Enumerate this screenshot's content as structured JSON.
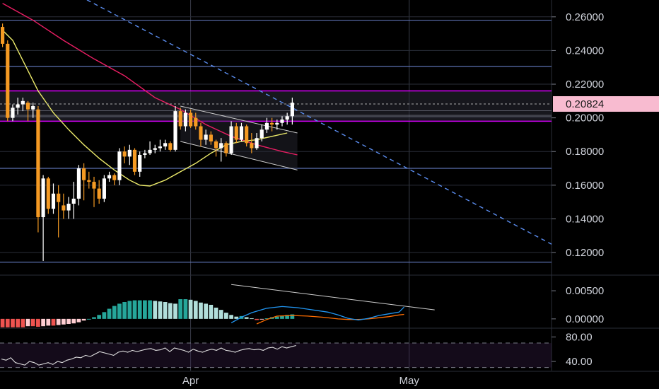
{
  "chart_data": [
    {
      "type": "candlestick",
      "panel": "price",
      "y_axis": {
        "range": [
          0.107,
          0.27
        ],
        "tick_labels": [
          "0.26000",
          "0.24000",
          "0.22000",
          "0.20000",
          "0.18000",
          "0.16000",
          "0.14000",
          "0.12000"
        ],
        "tick_values": [
          0.26,
          0.24,
          0.22,
          0.2,
          0.18,
          0.16,
          0.14,
          0.12
        ]
      },
      "x_axis": {
        "labels": [
          "Apr",
          "May"
        ],
        "label_bar_index": [
          37,
          80
        ],
        "visible_bars": [
          -0.5,
          108
        ]
      },
      "current_price": {
        "label": "0.20824",
        "value": 0.20824,
        "color": "#f8bbd0"
      },
      "colors": {
        "up": "#ffffff",
        "down": "#f59a23",
        "sma_short": "#ecea6a",
        "sma_long": "#e91e63",
        "zone": "#d500f9",
        "trend": "#5b8def",
        "grid": "#2a2e39",
        "level": "#5b6fb0"
      },
      "horizontal_levels": [
        0.258,
        0.2305,
        0.17,
        0.1143
      ],
      "resistance_zone": [
        0.198,
        0.216
      ],
      "zone_inner_lines": [
        0.2042,
        0.2015,
        0.2008
      ],
      "candles": [
        [
          0.254,
          0.256,
          0.242,
          0.244
        ],
        [
          0.244,
          0.246,
          0.198,
          0.2
        ],
        [
          0.2,
          0.208,
          0.198,
          0.206
        ],
        [
          0.206,
          0.212,
          0.202,
          0.208
        ],
        [
          0.208,
          0.212,
          0.204,
          0.21
        ],
        [
          0.209,
          0.21,
          0.198,
          0.205
        ],
        [
          0.205,
          0.209,
          0.2,
          0.207
        ],
        [
          0.205,
          0.207,
          0.132,
          0.141
        ],
        [
          0.141,
          0.166,
          0.115,
          0.164
        ],
        [
          0.164,
          0.165,
          0.143,
          0.146
        ],
        [
          0.146,
          0.161,
          0.143,
          0.155
        ],
        [
          0.155,
          0.16,
          0.129,
          0.15
        ],
        [
          0.148,
          0.155,
          0.14,
          0.145
        ],
        [
          0.145,
          0.153,
          0.14,
          0.149
        ],
        [
          0.149,
          0.162,
          0.14,
          0.152
        ],
        [
          0.152,
          0.172,
          0.148,
          0.17
        ],
        [
          0.17,
          0.173,
          0.151,
          0.163
        ],
        [
          0.163,
          0.168,
          0.158,
          0.162
        ],
        [
          0.162,
          0.165,
          0.147,
          0.158
        ],
        [
          0.158,
          0.163,
          0.149,
          0.152
        ],
        [
          0.152,
          0.166,
          0.15,
          0.164
        ],
        [
          0.164,
          0.168,
          0.162,
          0.166
        ],
        [
          0.166,
          0.167,
          0.16,
          0.163
        ],
        [
          0.163,
          0.182,
          0.16,
          0.18
        ],
        [
          0.18,
          0.183,
          0.173,
          0.177
        ],
        [
          0.177,
          0.184,
          0.172,
          0.181
        ],
        [
          0.181,
          0.182,
          0.166,
          0.168
        ],
        [
          0.168,
          0.18,
          0.165,
          0.178
        ],
        [
          0.178,
          0.181,
          0.176,
          0.179
        ],
        [
          0.179,
          0.186,
          0.178,
          0.181
        ],
        [
          0.181,
          0.184,
          0.179,
          0.182
        ],
        [
          0.182,
          0.187,
          0.18,
          0.183
        ],
        [
          0.183,
          0.187,
          0.181,
          0.185
        ],
        [
          0.185,
          0.186,
          0.18,
          0.181
        ],
        [
          0.181,
          0.207,
          0.18,
          0.204
        ],
        [
          0.204,
          0.206,
          0.193,
          0.195
        ],
        [
          0.195,
          0.205,
          0.192,
          0.203
        ],
        [
          0.203,
          0.205,
          0.194,
          0.195
        ],
        [
          0.2,
          0.203,
          0.193,
          0.195
        ],
        [
          0.195,
          0.197,
          0.183,
          0.187
        ],
        [
          0.187,
          0.193,
          0.184,
          0.19
        ],
        [
          0.19,
          0.192,
          0.184,
          0.186
        ],
        [
          0.186,
          0.187,
          0.177,
          0.182
        ],
        [
          0.182,
          0.188,
          0.174,
          0.185
        ],
        [
          0.185,
          0.186,
          0.177,
          0.179
        ],
        [
          0.179,
          0.198,
          0.178,
          0.195
        ],
        [
          0.195,
          0.197,
          0.185,
          0.187
        ],
        [
          0.187,
          0.197,
          0.186,
          0.195
        ],
        [
          0.195,
          0.196,
          0.183,
          0.185
        ],
        [
          0.185,
          0.191,
          0.179,
          0.182
        ],
        [
          0.182,
          0.191,
          0.181,
          0.188
        ],
        [
          0.188,
          0.196,
          0.186,
          0.193
        ],
        [
          0.193,
          0.2,
          0.191,
          0.197
        ],
        [
          0.197,
          0.2,
          0.192,
          0.196
        ],
        [
          0.196,
          0.199,
          0.193,
          0.197
        ],
        [
          0.197,
          0.201,
          0.195,
          0.199
        ],
        [
          0.199,
          0.203,
          0.196,
          0.201
        ],
        [
          0.201,
          0.212,
          0.196,
          0.209
        ]
      ],
      "sma_short": [
        [
          0,
          0.252
        ],
        [
          2,
          0.246
        ],
        [
          4,
          0.234
        ],
        [
          7,
          0.216
        ],
        [
          10,
          0.203
        ],
        [
          13,
          0.193
        ],
        [
          16,
          0.184
        ],
        [
          19,
          0.176
        ],
        [
          22,
          0.169
        ],
        [
          25,
          0.163
        ],
        [
          27,
          0.16
        ],
        [
          29,
          0.1595
        ],
        [
          32,
          0.163
        ],
        [
          35,
          0.168
        ],
        [
          38,
          0.173
        ],
        [
          41,
          0.179
        ],
        [
          44,
          0.184
        ],
        [
          47,
          0.186
        ],
        [
          50,
          0.187
        ],
        [
          53,
          0.189
        ],
        [
          56,
          0.191
        ]
      ],
      "sma_long": [
        [
          0,
          0.268
        ],
        [
          6,
          0.258
        ],
        [
          12,
          0.246
        ],
        [
          18,
          0.235
        ],
        [
          24,
          0.225
        ],
        [
          30,
          0.212
        ],
        [
          35,
          0.205
        ],
        [
          40,
          0.196
        ],
        [
          45,
          0.189
        ],
        [
          50,
          0.184
        ],
        [
          55,
          0.18
        ],
        [
          58,
          0.178
        ]
      ],
      "trendlines": [
        {
          "style": "dashed",
          "color": "#5b8def",
          "points": [
            [
              -1,
              0.298
            ],
            [
              108,
              0.125
            ]
          ]
        },
        {
          "style": "solid",
          "color": "#cfcfcf",
          "points": [
            [
              35,
              0.207
            ],
            [
              58,
              0.191
            ]
          ]
        },
        {
          "style": "solid",
          "color": "#cfcfcf",
          "points": [
            [
              35,
              0.186
            ],
            [
              58,
              0.169
            ]
          ]
        }
      ]
    },
    {
      "type": "histogram",
      "panel": "macd",
      "y_axis": {
        "range": [
          -0.0014,
          0.0074
        ],
        "tick_labels": [
          "0.00500",
          "0.00000"
        ],
        "tick_values": [
          0.005,
          0.0
        ]
      },
      "histogram": [
        -0.0015,
        -0.0015,
        -0.0015,
        -0.0015,
        -0.0015,
        -0.0013,
        -0.0013,
        -0.0014,
        -0.0013,
        -0.0012,
        -0.0012,
        -0.0011,
        -0.001,
        -0.0009,
        -0.0008,
        -0.0006,
        -0.0003,
        0.0,
        0.0003,
        0.0007,
        0.0012,
        0.0018,
        0.0023,
        0.0027,
        0.003,
        0.0032,
        0.0033,
        0.0033,
        0.0033,
        0.0033,
        0.0032,
        0.0031,
        0.003,
        0.0028,
        0.0027,
        0.0035,
        0.0035,
        0.0034,
        0.0032,
        0.0029,
        0.0027,
        0.0025,
        0.002,
        0.0016,
        0.0011,
        0.0007,
        0.0004,
        0.0005,
        0.0003,
        0.0001,
        -0.0002,
        -0.0001,
        0.0001,
        0.0003,
        0.0004,
        0.0005,
        0.0007,
        0.0008
      ],
      "macd_line": [
        [
          45,
          -0.0007
        ],
        [
          47,
          0.0003
        ],
        [
          49,
          0.0011
        ],
        [
          52,
          0.0019
        ],
        [
          55,
          0.0022
        ],
        [
          58,
          0.002
        ],
        [
          61,
          0.0016
        ],
        [
          64,
          0.0012
        ],
        [
          66,
          0.0007
        ],
        [
          68,
          0.0001
        ],
        [
          70,
          -0.0002
        ],
        [
          72,
          0.0001
        ],
        [
          74,
          0.0006
        ],
        [
          76,
          0.0009
        ],
        [
          78,
          0.0012
        ],
        [
          79,
          0.0021
        ]
      ],
      "signal_line": [
        [
          50,
          -0.0009
        ],
        [
          52,
          -0.0001
        ],
        [
          54,
          0.0005
        ],
        [
          57,
          0.0006
        ],
        [
          60,
          0.0005
        ],
        [
          63,
          0.0003
        ],
        [
          66,
          0.0
        ],
        [
          68,
          -0.0001
        ],
        [
          70,
          -0.0001
        ],
        [
          72,
          0.0
        ],
        [
          74,
          0.0002
        ],
        [
          76,
          0.0004
        ],
        [
          78,
          0.0007
        ],
        [
          79,
          0.0008
        ]
      ],
      "trendline": [
        [
          45,
          0.0061
        ],
        [
          85,
          0.0016
        ]
      ]
    },
    {
      "type": "line",
      "panel": "rsi",
      "y_axis": {
        "range": [
          25,
          92
        ],
        "tick_labels": [
          "80.00",
          "40.00"
        ],
        "tick_values": [
          80,
          40
        ]
      },
      "bands": [
        70,
        30
      ],
      "values": [
        44,
        42,
        46,
        38,
        36,
        34,
        40,
        38,
        34,
        36,
        38,
        35,
        40,
        38,
        42,
        44,
        47,
        46,
        50,
        48,
        52,
        56,
        54,
        52,
        50,
        55,
        57,
        55,
        58,
        56,
        58,
        60,
        61,
        58,
        59,
        62,
        56,
        62,
        60,
        58,
        55,
        60,
        57,
        55,
        58,
        60,
        58,
        62,
        58,
        57,
        55,
        58,
        60,
        61,
        59,
        60,
        58,
        62,
        63,
        60,
        64,
        62,
        64,
        66
      ]
    }
  ]
}
